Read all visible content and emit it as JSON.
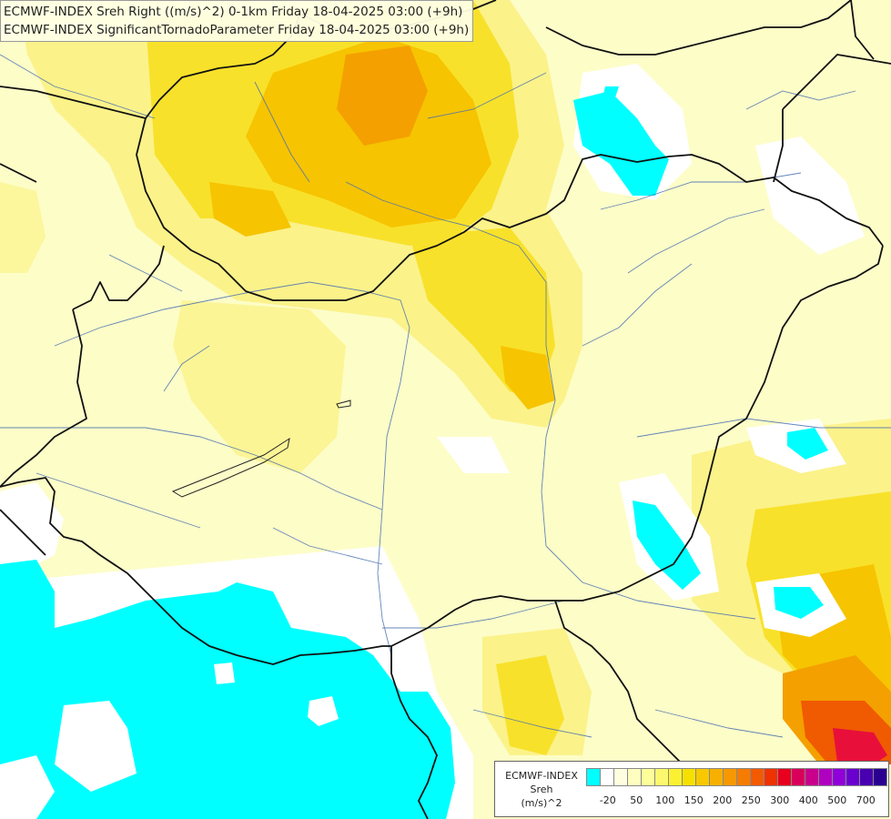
{
  "title": {
    "line1": "ECMWF-INDEX Sreh Right ((m/s)^2) 0-1km Friday 18-04-2025 03:00 (+9h)",
    "line2": "ECMWF-INDEX SignificantTornadoParameter Friday 18-04-2025 03:00 (+9h)"
  },
  "legend": {
    "model": "ECMWF-INDEX",
    "parameter": "Sreh",
    "unit": "(m/s)^2",
    "colors": [
      "#00ffff",
      "#ffffff",
      "#ffffe0",
      "#fefec0",
      "#fdfd9a",
      "#fcf86e",
      "#fbf130",
      "#f7e000",
      "#f8c800",
      "#f7b000",
      "#f79800",
      "#f57c00",
      "#f35a00",
      "#ef3200",
      "#e8001e",
      "#d8005a",
      "#c8008c",
      "#b000c0",
      "#9000d8",
      "#6a00d0",
      "#4800b0",
      "#2a0090",
      "#100070"
    ],
    "ticks": [
      {
        "label": "-20",
        "slot": 1
      },
      {
        "label": "50",
        "slot": 3
      },
      {
        "label": "100",
        "slot": 5
      },
      {
        "label": "150",
        "slot": 7
      },
      {
        "label": "200",
        "slot": 9
      },
      {
        "label": "250",
        "slot": 11
      },
      {
        "label": "300",
        "slot": 13
      },
      {
        "label": "400",
        "slot": 15
      },
      {
        "label": "500",
        "slot": 17
      },
      {
        "label": "700",
        "slot": 19
      }
    ]
  }
}
